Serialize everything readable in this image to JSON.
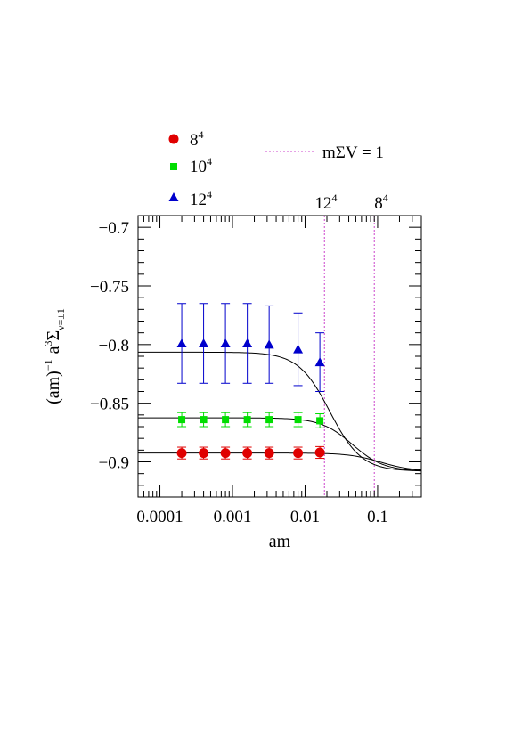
{
  "chart_data": {
    "type": "scatter",
    "xscale": "log",
    "xlim": [
      5e-05,
      0.4
    ],
    "ylim": [
      -0.93,
      -0.69
    ],
    "xlabel": "am",
    "ylabel": {
      "main": "(am)",
      "exp": "−1",
      "mid": "a",
      "mid_exp": "3",
      "sigma": "Σ",
      "sub": "ν=±1"
    },
    "xticks": [
      {
        "value": 0.0001,
        "label": "0.0001"
      },
      {
        "value": 0.001,
        "label": "0.001"
      },
      {
        "value": 0.01,
        "label": "0.01"
      },
      {
        "value": 0.1,
        "label": "0.1"
      }
    ],
    "yticks": [
      {
        "value": -0.7,
        "label": "−0.7"
      },
      {
        "value": -0.75,
        "label": "−0.75"
      },
      {
        "value": -0.8,
        "label": "−0.8"
      },
      {
        "value": -0.85,
        "label": "−0.85"
      },
      {
        "value": -0.9,
        "label": "−0.9"
      }
    ],
    "series": [
      {
        "name": "8",
        "name_sup": "4",
        "marker": "circle",
        "color": "#e00000",
        "points": [
          {
            "x": 0.0002,
            "y": -0.8925,
            "err": 0.005
          },
          {
            "x": 0.0004,
            "y": -0.8925,
            "err": 0.005
          },
          {
            "x": 0.0008,
            "y": -0.8925,
            "err": 0.005
          },
          {
            "x": 0.0016,
            "y": -0.8925,
            "err": 0.005
          },
          {
            "x": 0.0032,
            "y": -0.8925,
            "err": 0.005
          },
          {
            "x": 0.008,
            "y": -0.8925,
            "err": 0.005
          },
          {
            "x": 0.016,
            "y": -0.892,
            "err": 0.005
          }
        ]
      },
      {
        "name": "10",
        "name_sup": "4",
        "marker": "square",
        "color": "#00dd00",
        "points": [
          {
            "x": 0.0002,
            "y": -0.864,
            "err": 0.006
          },
          {
            "x": 0.0004,
            "y": -0.864,
            "err": 0.006
          },
          {
            "x": 0.0008,
            "y": -0.864,
            "err": 0.006
          },
          {
            "x": 0.0016,
            "y": -0.864,
            "err": 0.006
          },
          {
            "x": 0.0032,
            "y": -0.864,
            "err": 0.006
          },
          {
            "x": 0.008,
            "y": -0.864,
            "err": 0.006
          },
          {
            "x": 0.016,
            "y": -0.865,
            "err": 0.006
          }
        ]
      },
      {
        "name": "12",
        "name_sup": "4",
        "marker": "triangle",
        "color": "#0000cc",
        "points": [
          {
            "x": 0.0002,
            "y": -0.799,
            "err": 0.034
          },
          {
            "x": 0.0004,
            "y": -0.799,
            "err": 0.034
          },
          {
            "x": 0.0008,
            "y": -0.799,
            "err": 0.034
          },
          {
            "x": 0.0016,
            "y": -0.799,
            "err": 0.034
          },
          {
            "x": 0.0032,
            "y": -0.8,
            "err": 0.033
          },
          {
            "x": 0.008,
            "y": -0.804,
            "err": 0.031
          },
          {
            "x": 0.016,
            "y": -0.815,
            "err": 0.025
          }
        ]
      }
    ],
    "curves": [
      {
        "name": "8",
        "plateau": -0.8925,
        "limit": -0.908,
        "scale": 0.11
      },
      {
        "name": "10",
        "plateau": -0.8625,
        "limit": -0.908,
        "scale": 0.045
      },
      {
        "name": "12",
        "plateau": -0.8065,
        "limit": -0.908,
        "scale": 0.022
      }
    ],
    "reference_lines": {
      "label": "mΣV  =  1",
      "color": "#cc44cc",
      "lines": [
        {
          "x": 0.0185,
          "label": "12",
          "label_sup": "4"
        },
        {
          "x": 0.09,
          "label": "8",
          "label_sup": "4"
        }
      ]
    },
    "grid": false,
    "legend_position": "top-left"
  }
}
